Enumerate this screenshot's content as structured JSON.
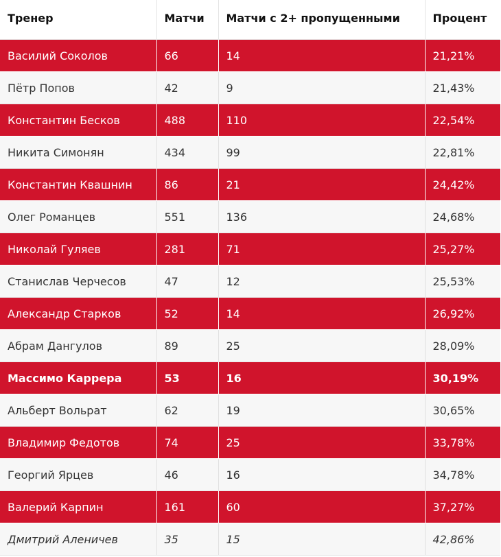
{
  "header": {
    "coach": "Тренер",
    "matches": "Матчи",
    "matches_2plus": "Матчи с 2+ пропущенными",
    "percent": "Процент"
  },
  "rows": [
    {
      "coach": "Василий Соколов",
      "matches": "66",
      "matches_2plus": "14",
      "percent": "21,21%",
      "style": "red"
    },
    {
      "coach": "Пётр Попов",
      "matches": "42",
      "matches_2plus": "9",
      "percent": "21,43%",
      "style": "plain"
    },
    {
      "coach": "Константин Бесков",
      "matches": "488",
      "matches_2plus": "110",
      "percent": "22,54%",
      "style": "red"
    },
    {
      "coach": "Никита Симонян",
      "matches": "434",
      "matches_2plus": "99",
      "percent": "22,81%",
      "style": "plain"
    },
    {
      "coach": "Константин Квашнин",
      "matches": "86",
      "matches_2plus": "21",
      "percent": "24,42%",
      "style": "red"
    },
    {
      "coach": "Олег Романцев",
      "matches": "551",
      "matches_2plus": "136",
      "percent": "24,68%",
      "style": "plain"
    },
    {
      "coach": "Николай Гуляев",
      "matches": "281",
      "matches_2plus": "71",
      "percent": "25,27%",
      "style": "red"
    },
    {
      "coach": "Станислав Черчесов",
      "matches": "47",
      "matches_2plus": "12",
      "percent": "25,53%",
      "style": "plain"
    },
    {
      "coach": "Александр Старков",
      "matches": "52",
      "matches_2plus": "14",
      "percent": "26,92%",
      "style": "red"
    },
    {
      "coach": "Абрам Дангулов",
      "matches": "89",
      "matches_2plus": "25",
      "percent": "28,09%",
      "style": "plain"
    },
    {
      "coach": "Массимо Каррера",
      "matches": "53",
      "matches_2plus": "16",
      "percent": "30,19%",
      "style": "red bold"
    },
    {
      "coach": "Альберт Вольрат",
      "matches": "62",
      "matches_2plus": "19",
      "percent": "30,65%",
      "style": "plain"
    },
    {
      "coach": "Владимир Федотов",
      "matches": "74",
      "matches_2plus": "25",
      "percent": "33,78%",
      "style": "red"
    },
    {
      "coach": "Георгий Ярцев",
      "matches": "46",
      "matches_2plus": "16",
      "percent": "34,78%",
      "style": "plain"
    },
    {
      "coach": "Валерий Карпин",
      "matches": "161",
      "matches_2plus": "60",
      "percent": "37,27%",
      "style": "red"
    },
    {
      "coach": "Дмитрий Аленичев",
      "matches": "35",
      "matches_2plus": "15",
      "percent": "42,86%",
      "style": "plain italic"
    }
  ],
  "colors": {
    "accent_red": "#d0142c",
    "row_light": "#f7f7f7"
  }
}
